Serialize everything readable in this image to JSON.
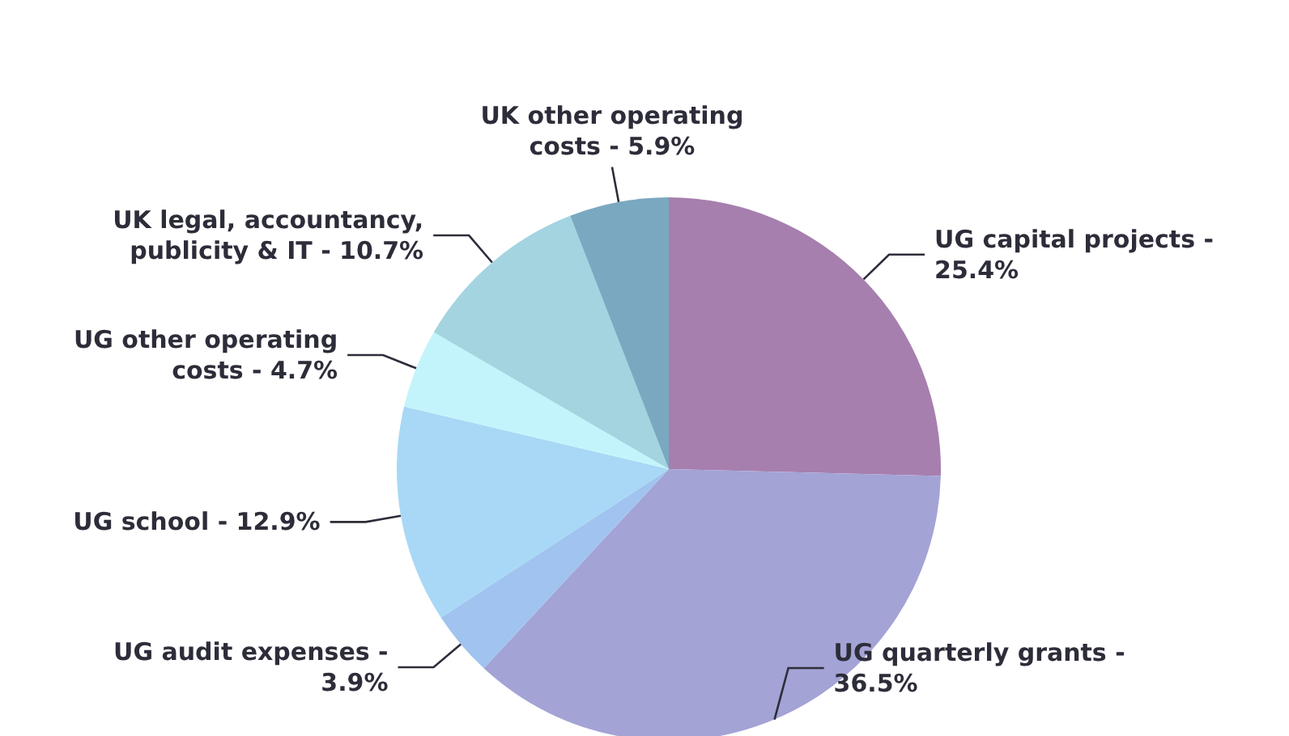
{
  "chart_data": {
    "type": "pie",
    "categories": [
      "UG capital projects -",
      "UG quarterly grants -",
      "UG audit expenses -",
      "UG school -",
      "UG other operating costs -",
      "UK legal, accountancy, publicity & IT -",
      "UK other operating costs -"
    ],
    "values": [
      25.4,
      36.5,
      3.9,
      12.9,
      4.7,
      10.7,
      5.9
    ],
    "value_labels": [
      "25.4%",
      "36.5%",
      "3.9%",
      "12.9%",
      "4.7%",
      "10.7%",
      "5.9%"
    ],
    "colors": [
      "#a67fae",
      "#a3a3d6",
      "#a0c4ef",
      "#a8d8f5",
      "#c4f4fb",
      "#a3d4e0",
      "#7aa8c0"
    ],
    "legend": false
  }
}
